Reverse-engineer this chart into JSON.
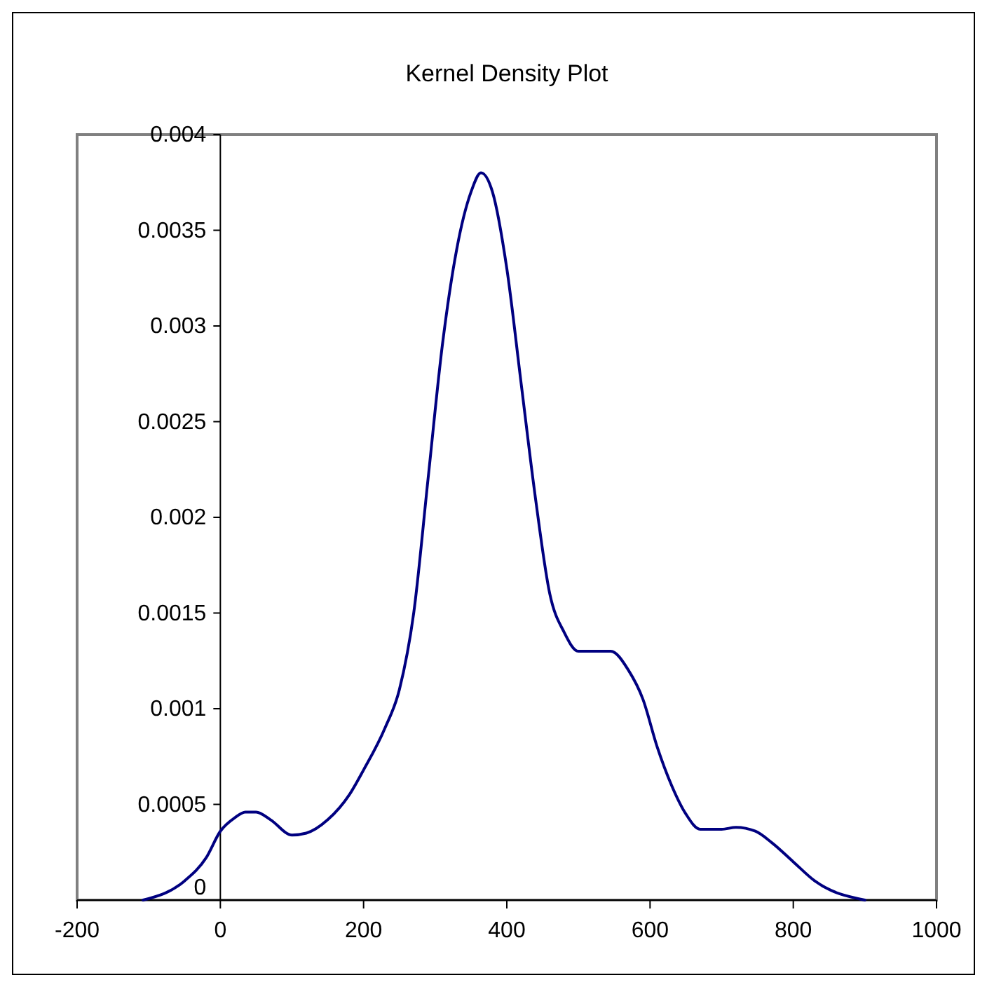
{
  "chart_data": {
    "type": "line",
    "title": "Kernel Density Plot",
    "x": [
      -108,
      -50,
      -20,
      0,
      20,
      35,
      50,
      70,
      100,
      120,
      150,
      180,
      200,
      230,
      250,
      270,
      290,
      310,
      330,
      350,
      364,
      380,
      400,
      420,
      440,
      460,
      480,
      500,
      520,
      545,
      570,
      590,
      610,
      630,
      650,
      670,
      700,
      720,
      747,
      770,
      800,
      830,
      900
    ],
    "series": [
      {
        "color": "#000080",
        "values": [
          0,
          0.0001,
          0.00022,
          0.00036,
          0.00043,
          0.00046,
          0.00046,
          0.00042,
          0.00034,
          0.00035,
          0.00042,
          0.00055,
          0.00068,
          0.0009,
          0.0011,
          0.0015,
          0.0022,
          0.0029,
          0.0034,
          0.0037,
          0.0038,
          0.0037,
          0.0033,
          0.0027,
          0.0021,
          0.0016,
          0.0014,
          0.0013,
          0.0013,
          0.0013,
          0.0012,
          0.00105,
          0.0008,
          0.0006,
          0.00045,
          0.00037,
          0.00037,
          0.00038,
          0.00036,
          0.0003,
          0.0002,
          0.0001,
          0
        ]
      }
    ],
    "xlim": [
      -200,
      1000
    ],
    "xticks": [
      -200,
      0,
      200,
      400,
      600,
      800,
      1000
    ],
    "ylim": [
      0,
      0.004
    ],
    "yticks": [
      0,
      0.0005,
      0.001,
      0.0015,
      0.002,
      0.0025,
      0.003,
      0.0035,
      0.004
    ],
    "grid": false,
    "marker": "none",
    "line_style": "solid"
  }
}
